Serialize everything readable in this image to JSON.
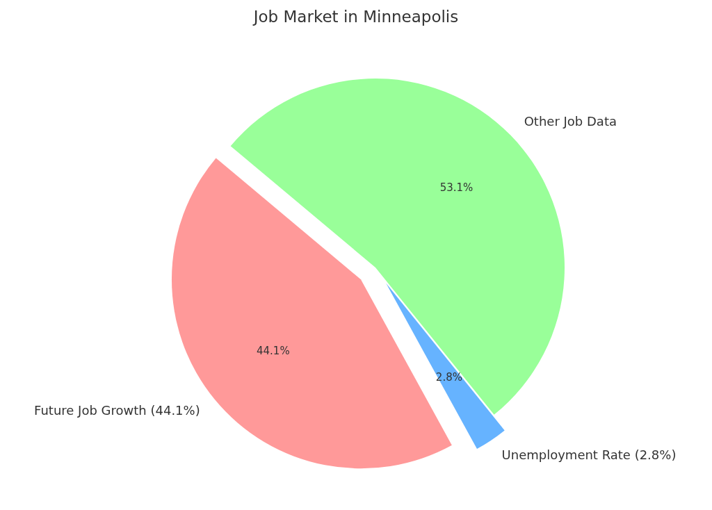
{
  "chart_data": {
    "type": "pie",
    "title": "Job Market in Minneapolis",
    "categories": [
      "Future Job Growth (44.1%)",
      "Unemployment Rate (2.8%)",
      "Other Job Data"
    ],
    "values": [
      44.1,
      2.8,
      53.1
    ],
    "colors": [
      "#ff9999",
      "#66b3ff",
      "#99ff99"
    ],
    "value_labels": [
      "44.1%",
      "2.8%",
      "53.1%"
    ]
  }
}
